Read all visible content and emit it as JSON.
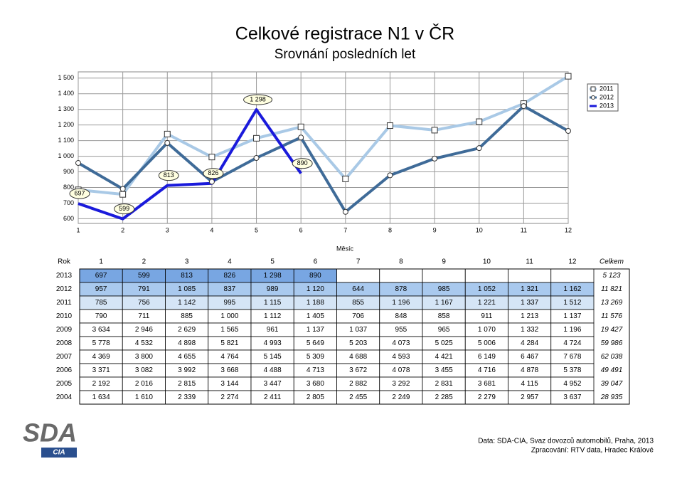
{
  "chart_data": {
    "type": "line",
    "title": "Celkové registrace N1 v ČR",
    "subtitle": "Srovnání posledních let",
    "x_label": "Měsíc",
    "x": [
      1,
      2,
      3,
      4,
      5,
      6,
      7,
      8,
      9,
      10,
      11,
      12
    ],
    "xlim": [
      1,
      12
    ],
    "xticks": [
      1,
      2,
      3,
      4,
      5,
      6,
      7,
      8,
      9,
      10,
      11,
      12
    ],
    "ylim": [
      570,
      1540
    ],
    "yticks": [
      600,
      700,
      800,
      900,
      {
        "value": 1000,
        "label": "1 000"
      },
      {
        "value": 1100,
        "label": "1 100"
      },
      {
        "value": 1200,
        "label": "1 200"
      },
      {
        "value": 1300,
        "label": "1 300"
      },
      {
        "value": 1400,
        "label": "1 400"
      },
      {
        "value": 1500,
        "label": "1 500"
      }
    ],
    "grid": true,
    "legend": "right",
    "series": [
      {
        "name": "2011",
        "color": "#a9c9e6",
        "marker": "square",
        "values": [
          785,
          756,
          1142,
          995,
          1115,
          1188,
          855,
          1196,
          1167,
          1221,
          1337,
          1512
        ]
      },
      {
        "name": "2012",
        "color": "#3f6b98",
        "marker": "circle",
        "values": [
          957,
          791,
          1085,
          837,
          989,
          1120,
          644,
          878,
          985,
          1052,
          1321,
          1162
        ]
      },
      {
        "name": "2013",
        "color": "#1a1adb",
        "values": [
          697,
          599,
          813,
          826,
          1298,
          890,
          null,
          null,
          null,
          null,
          null,
          null
        ],
        "value_labels": [
          "697",
          "599",
          "813",
          "826",
          "1 298",
          "890",
          null,
          null,
          null,
          null,
          null,
          null
        ]
      }
    ]
  },
  "table": {
    "header": [
      "Rok",
      "1",
      "2",
      "3",
      "4",
      "5",
      "6",
      "7",
      "8",
      "9",
      "10",
      "11",
      "12",
      "Celkem"
    ],
    "rows": [
      [
        "2013",
        "697",
        "599",
        "813",
        "826",
        "1 298",
        "890",
        null,
        null,
        null,
        null,
        null,
        null,
        "5 123"
      ],
      [
        "2012",
        "957",
        "791",
        "1 085",
        "837",
        "989",
        "1 120",
        "644",
        "878",
        "985",
        "1 052",
        "1 321",
        "1 162",
        "11 821"
      ],
      [
        "2011",
        "785",
        "756",
        "1 142",
        "995",
        "1 115",
        "1 188",
        "855",
        "1 196",
        "1 167",
        "1 221",
        "1 337",
        "1 512",
        "13 269"
      ],
      [
        "2010",
        "790",
        "711",
        "885",
        "1 000",
        "1 112",
        "1 405",
        "706",
        "848",
        "858",
        "911",
        "1 213",
        "1 137",
        "11 576"
      ],
      [
        "2009",
        "3 634",
        "2 946",
        "2 629",
        "1 565",
        "961",
        "1 137",
        "1 037",
        "955",
        "965",
        "1 070",
        "1 332",
        "1 196",
        "19 427"
      ],
      [
        "2008",
        "5 778",
        "4 532",
        "4 898",
        "5 821",
        "4 993",
        "5 649",
        "5 203",
        "4 073",
        "5 025",
        "5 006",
        "4 284",
        "4 724",
        "59 986"
      ],
      [
        "2007",
        "4 369",
        "3 800",
        "4 655",
        "4 764",
        "5 145",
        "5 309",
        "4 688",
        "4 593",
        "4 421",
        "6 149",
        "6 467",
        "7 678",
        "62 038"
      ],
      [
        "2006",
        "3 371",
        "3 082",
        "3 992",
        "3 668",
        "4 488",
        "4 713",
        "3 672",
        "4 078",
        "3 455",
        "4 716",
        "4 878",
        "5 378",
        "49 491"
      ],
      [
        "2005",
        "2 192",
        "2 016",
        "2 815",
        "3 144",
        "3 447",
        "3 680",
        "2 882",
        "3 292",
        "2 831",
        "3 681",
        "4 115",
        "4 952",
        "39 047"
      ],
      [
        "2004",
        "1 634",
        "1 610",
        "2 339",
        "2 274",
        "2 411",
        "2 805",
        "2 455",
        "2 249",
        "2 285",
        "2 279",
        "2 957",
        "3 637",
        "28 935"
      ]
    ],
    "row_fills": [
      "#78a6e2",
      "#a9c9ee",
      "#d5e5f6"
    ]
  },
  "logo": {
    "text": "SDA",
    "sub": "CIA"
  },
  "footer": {
    "source": "Data: SDA-CIA, Svaz dovozců automobilů, Praha, 2013",
    "processing": "Zpracování: RTV data, Hradec Králové"
  }
}
